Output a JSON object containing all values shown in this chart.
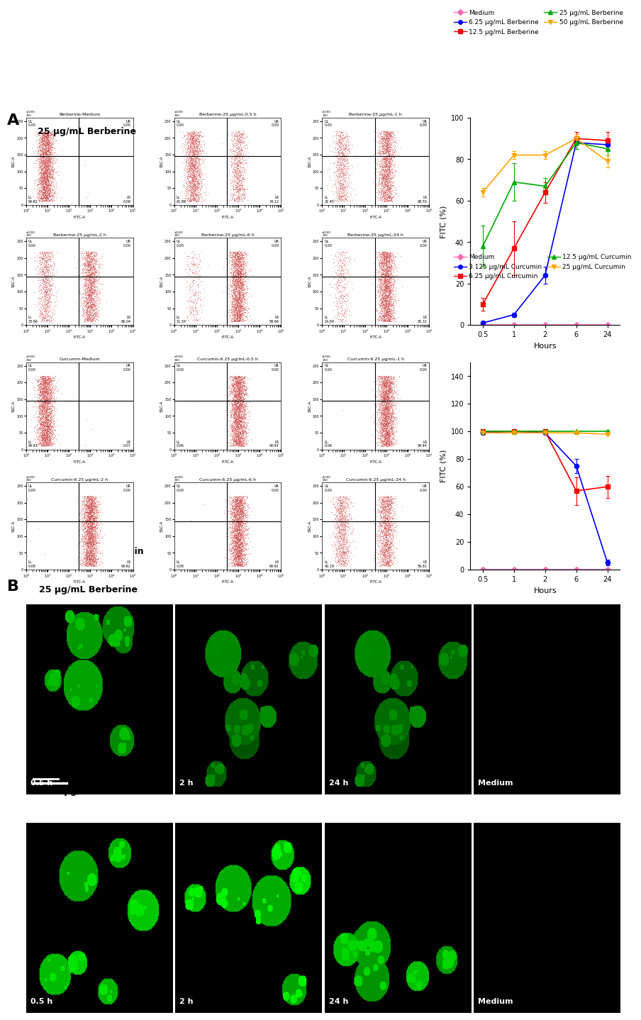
{
  "berberine_title": "25 μg/mL Berberine",
  "curcumin_title": "6.25 μg/mL Curcumin",
  "section_b_title_berberine": "25 μg/mL Berberine",
  "section_b_title_curcumin": "6.25 μg/mL Curcumin",
  "hours": [
    0.5,
    1,
    2,
    6,
    24
  ],
  "hours_labels": [
    "0.5",
    "1",
    "2",
    "6",
    "24"
  ],
  "berberine_data": {
    "Medium": {
      "values": [
        0,
        0,
        0,
        0,
        0
      ],
      "err": [
        0,
        0,
        0,
        0,
        0
      ],
      "color": "#FF69B4",
      "marker": "D"
    },
    "6.25": {
      "values": [
        1,
        5,
        24,
        88,
        87
      ],
      "err": [
        0.5,
        1,
        4,
        3,
        3
      ],
      "color": "#0000FF",
      "marker": "o"
    },
    "12.5": {
      "values": [
        10,
        37,
        64,
        90,
        89
      ],
      "err": [
        3,
        13,
        5,
        3,
        4
      ],
      "color": "#FF0000",
      "marker": "s"
    },
    "25": {
      "values": [
        38,
        69,
        67,
        88,
        85
      ],
      "err": [
        10,
        9,
        4,
        3,
        3
      ],
      "color": "#00AA00",
      "marker": "^"
    },
    "50": {
      "values": [
        64,
        82,
        82,
        90,
        79
      ],
      "err": [
        2,
        2,
        2,
        2,
        3
      ],
      "color": "#FFA500",
      "marker": "v"
    }
  },
  "curcumin_data": {
    "Medium": {
      "values": [
        0,
        0,
        0,
        0,
        0
      ],
      "err": [
        0,
        0,
        0,
        0,
        0
      ],
      "color": "#FF69B4",
      "marker": "D"
    },
    "3.125": {
      "values": [
        99,
        100,
        99,
        75,
        5
      ],
      "err": [
        1,
        1,
        1,
        5,
        2
      ],
      "color": "#0000FF",
      "marker": "o"
    },
    "6.25": {
      "values": [
        100,
        100,
        100,
        57,
        60
      ],
      "err": [
        0.5,
        0.5,
        0.5,
        10,
        8
      ],
      "color": "#FF0000",
      "marker": "s"
    },
    "12.5": {
      "values": [
        100,
        100,
        100,
        100,
        100
      ],
      "err": [
        0.5,
        0.5,
        0.5,
        0.5,
        0.5
      ],
      "color": "#00AA00",
      "marker": "^"
    },
    "25": {
      "values": [
        99,
        99,
        99,
        99,
        98
      ],
      "err": [
        1,
        1,
        1,
        1,
        1
      ],
      "color": "#FFA500",
      "marker": "v"
    }
  },
  "flow_scatter_berberine": [
    {
      "title": "Berberine-Medium",
      "ll": 99.92,
      "lr": 0.08
    },
    {
      "title": "Berberine-25 μg/mL-0.5 h",
      "ll": 65.88,
      "lr": 34.12
    },
    {
      "title": "Berberine-25 μg/mL-1 h",
      "ll": 31.45,
      "lr": 68.55
    },
    {
      "title": "Berberine-25 μg/mL-2 h",
      "ll": 33.96,
      "lr": 66.04
    },
    {
      "title": "Berberine-25 μg/mL-6 h",
      "ll": 11.34,
      "lr": 88.66
    },
    {
      "title": "Berberine-25 μg/mL-24 h",
      "ll": 14.69,
      "lr": 85.31
    }
  ],
  "flow_scatter_curcumin": [
    {
      "title": "Curcumin-Medium",
      "ll": 99.93,
      "lr": 0.07
    },
    {
      "title": "Curcumin-6.25 μg/mL-0.5 h",
      "ll": 0.06,
      "lr": 99.94
    },
    {
      "title": "Curcumin-6.25 μg/mL-1 h",
      "ll": 0.06,
      "lr": 99.94
    },
    {
      "title": "Curcumin-6.25 μg/mL-2 h",
      "ll": 0.08,
      "lr": 99.92
    },
    {
      "title": "Curcumin-6.25 μg/mL-6 h",
      "ll": 0.08,
      "lr": 99.92
    },
    {
      "title": "Curcumin-6.25 μg/mL-24 h",
      "ll": 40.19,
      "lr": 59.81
    }
  ],
  "berberine_legend": [
    {
      "label": "Medium",
      "color": "#FF69B4",
      "marker": "D"
    },
    {
      "label": "6.25 μg/mL Berberine",
      "color": "#0000FF",
      "marker": "o"
    },
    {
      "label": "12.5 μg/mL Berberine",
      "color": "#FF0000",
      "marker": "s"
    },
    {
      "label": "25 μg/mL Berberine",
      "color": "#00AA00",
      "marker": "^"
    },
    {
      "label": "50 μg/mL Berberine",
      "color": "#FFA500",
      "marker": "v"
    }
  ],
  "curcumin_legend": [
    {
      "label": "Medium",
      "color": "#FF69B4",
      "marker": "D"
    },
    {
      "label": "3.125 μg/mL Curcumin",
      "color": "#0000FF",
      "marker": "o"
    },
    {
      "label": "6.25 μg/mL Curcumin",
      "color": "#FF0000",
      "marker": "s"
    },
    {
      "label": "12.5 μg/mL Curcumin",
      "color": "#00AA00",
      "marker": "^"
    },
    {
      "label": "25 μg/mL Curcumin",
      "color": "#FFA500",
      "marker": "v"
    }
  ],
  "confocal_labels_berberine": [
    "0.5 h",
    "2 h",
    "24 h",
    "Medium"
  ],
  "confocal_labels_curcumin": [
    "0.5 h",
    "2 h",
    "24 h",
    "Medium"
  ],
  "scale_bar_label": "",
  "bg_color": "#ffffff"
}
